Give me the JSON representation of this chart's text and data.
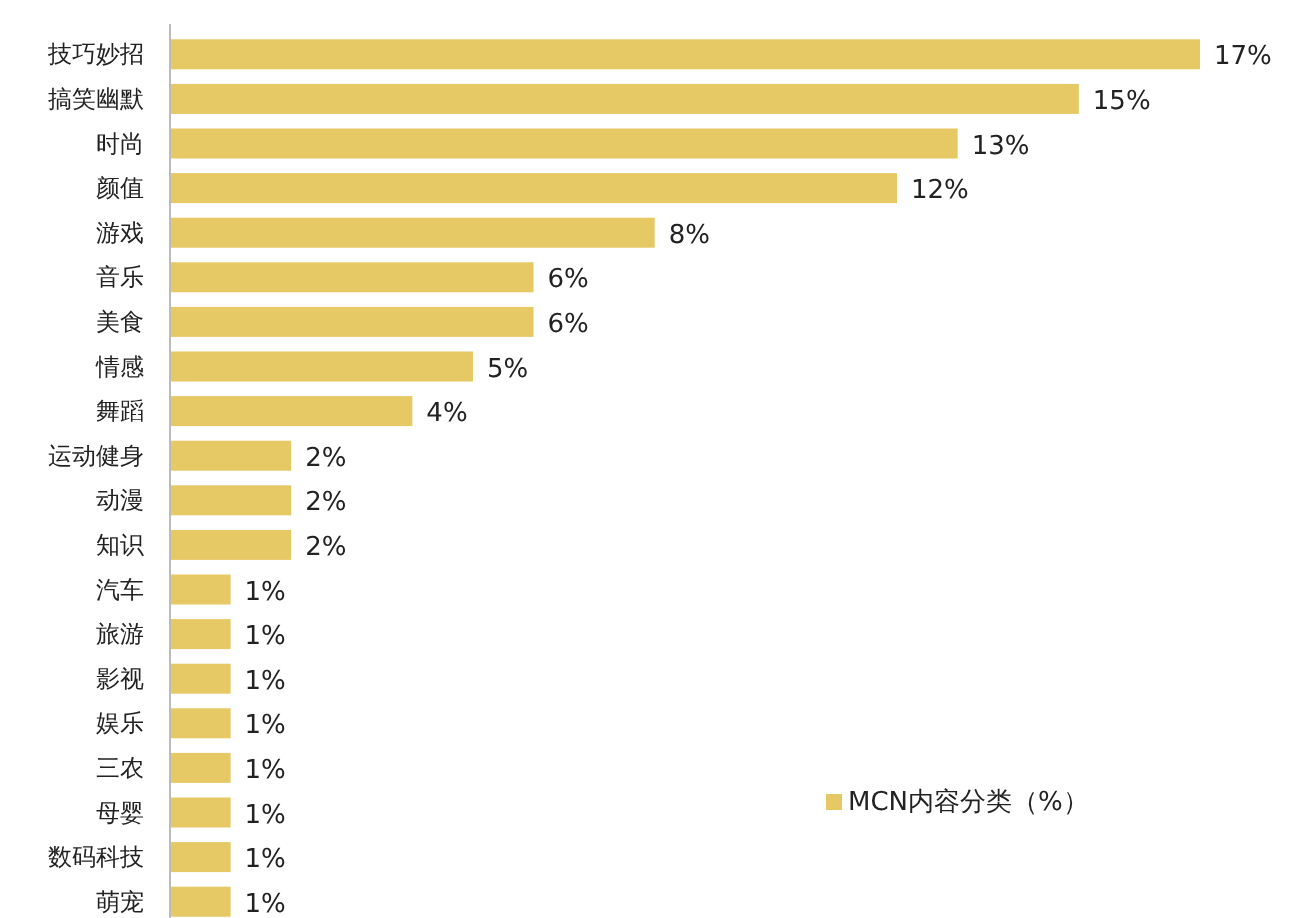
{
  "chart_data": {
    "type": "bar",
    "orientation": "horizontal",
    "categories": [
      "技巧妙招",
      "搞笑幽默",
      "时尚",
      "颜值",
      "游戏",
      "音乐",
      "美食",
      "情感",
      "舞蹈",
      "运动健身",
      "动漫",
      "知识",
      "汽车",
      "旅游",
      "影视",
      "娱乐",
      "三农",
      "母婴",
      "数码科技",
      "萌宠"
    ],
    "series": [
      {
        "name": "MCN内容分类（%）",
        "color": "#e6c865",
        "values": [
          17,
          15,
          13,
          12,
          8,
          6,
          6,
          5,
          4,
          2,
          2,
          2,
          1,
          1,
          1,
          1,
          1,
          1,
          1,
          1
        ],
        "value_labels": [
          "17%",
          "15%",
          "13%",
          "12%",
          "8%",
          "6%",
          "6%",
          "5%",
          "4%",
          "2%",
          "2%",
          "2%",
          "1%",
          "1%",
          "1%",
          "1%",
          "1%",
          "1%",
          "1%",
          "1%"
        ]
      }
    ],
    "legend": "bottom right"
  }
}
